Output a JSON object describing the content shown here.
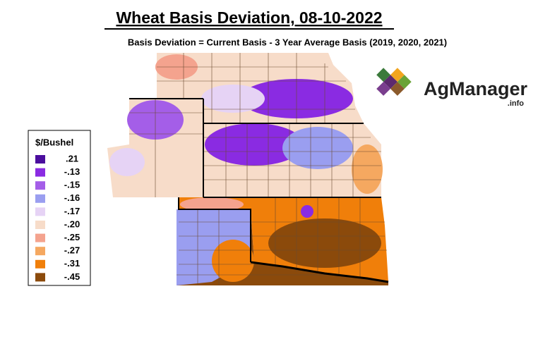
{
  "title": "Wheat Basis Deviation, 08-10-2022",
  "subtitle": "Basis Deviation = Current Basis - 3 Year Average Basis (2019, 2020, 2021)",
  "legend": {
    "title": "$/Bushel",
    "items": [
      {
        "label": ".21",
        "color": "#4b0e9e"
      },
      {
        "label": "-.13",
        "color": "#8a2be2"
      },
      {
        "label": "-.15",
        "color": "#a45ee8"
      },
      {
        "label": "-.16",
        "color": "#9a9ef0"
      },
      {
        "label": "-.17",
        "color": "#e6d3f5"
      },
      {
        "label": "-.20",
        "color": "#f7dcc9"
      },
      {
        "label": "-.25",
        "color": "#f4a38e"
      },
      {
        "label": "-.27",
        "color": "#f5a860"
      },
      {
        "label": "-.31",
        "color": "#f07f0a"
      },
      {
        "label": "-.45",
        "color": "#8b4a0b"
      }
    ]
  },
  "logo": {
    "name": "AgManager",
    "suffix": ".info"
  }
}
